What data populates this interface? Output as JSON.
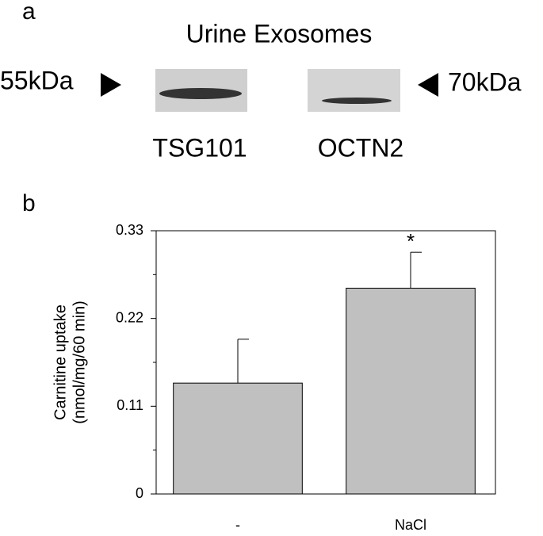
{
  "panel_a": {
    "label": "a",
    "title": "Urine Exosomes",
    "left_marker": "55kDa",
    "right_marker": "70kDa",
    "lanes": [
      "TSG101",
      "OCTN2"
    ]
  },
  "chart_data": {
    "panel_label": "b",
    "type": "bar",
    "ylabel": [
      "Carnitine uptake",
      "(nmol/mg/60 min)"
    ],
    "categories": [
      "-",
      "NaCl"
    ],
    "values": [
      0.139,
      0.258
    ],
    "errors": [
      0.055,
      0.045
    ],
    "annotations": [
      null,
      "*"
    ],
    "color": "#c0c0c0",
    "ylim": [
      0,
      0.33
    ],
    "yticks": [
      0,
      0.11,
      0.22,
      0.33
    ],
    "yminorticks": [
      0.055,
      0.165,
      0.275
    ]
  }
}
